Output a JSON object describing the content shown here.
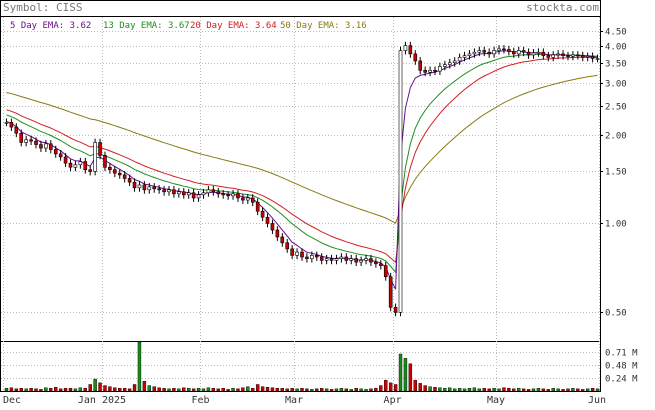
{
  "header": {
    "symbol_label": "Symbol: CISS",
    "site": "stockta.com",
    "ema5": "5 Day EMA: 3.62",
    "ema13": "13 Day EMA: 3.67",
    "ema20": "20 Day EMA: 3.64",
    "ema50": "50 Day EMA: 3.16"
  },
  "colors": {
    "up": "#1a1a1a",
    "down": "#cc0000",
    "ema5": "#6a0d91",
    "ema13": "#1f8f1f",
    "ema20": "#d21f1f",
    "ema50": "#8a7a12",
    "grid": "#bbbbbb",
    "vol_up": "#1a8a1a",
    "vol_down": "#cc0000"
  },
  "chart_data": {
    "type": "candlestick",
    "symbol": "CISS",
    "y_scale": "log",
    "ylim": [
      0.4,
      5.0
    ],
    "price_ticks": [
      0.5,
      1.0,
      1.5,
      2.0,
      2.5,
      3.0,
      3.5,
      4.0,
      4.5
    ],
    "x_labels": [
      "Dec",
      "Jan 2025",
      "Feb",
      "Mar",
      "Apr",
      "May",
      "Jun"
    ],
    "x_label_index": [
      0,
      20,
      40,
      59,
      79,
      100,
      121
    ],
    "x_grid_index": [
      0,
      20,
      40,
      59,
      79,
      100,
      121
    ],
    "trading_days": 121,
    "ohlc_start": [
      2.24,
      2.24,
      2.2,
      2.2
    ],
    "close": [
      2.2,
      2.12,
      2.02,
      1.88,
      1.92,
      1.9,
      1.85,
      1.8,
      1.86,
      1.78,
      1.72,
      1.68,
      1.6,
      1.55,
      1.58,
      1.62,
      1.52,
      1.5,
      1.88,
      1.7,
      1.55,
      1.52,
      1.48,
      1.46,
      1.42,
      1.38,
      1.32,
      1.35,
      1.3,
      1.33,
      1.31,
      1.3,
      1.28,
      1.3,
      1.26,
      1.28,
      1.25,
      1.27,
      1.22,
      1.25,
      1.27,
      1.3,
      1.28,
      1.26,
      1.25,
      1.24,
      1.26,
      1.22,
      1.2,
      1.22,
      1.18,
      1.1,
      1.05,
      1.0,
      0.95,
      0.9,
      0.86,
      0.82,
      0.78,
      0.8,
      0.77,
      0.76,
      0.78,
      0.77,
      0.75,
      0.76,
      0.75,
      0.76,
      0.77,
      0.75,
      0.76,
      0.74,
      0.75,
      0.76,
      0.74,
      0.73,
      0.72,
      0.66,
      0.52,
      0.5,
      3.85,
      4.0,
      3.75,
      3.55,
      3.3,
      3.25,
      3.3,
      3.28,
      3.4,
      3.45,
      3.5,
      3.55,
      3.65,
      3.7,
      3.75,
      3.8,
      3.85,
      3.8,
      3.75,
      3.85,
      3.9,
      3.88,
      3.82,
      3.75,
      3.85,
      3.8,
      3.72,
      3.78,
      3.8,
      3.7,
      3.65,
      3.72,
      3.75,
      3.7,
      3.68,
      3.72,
      3.7,
      3.65,
      3.68,
      3.62,
      3.62
    ],
    "volume_ticks": [
      0.24,
      0.48,
      0.71
    ],
    "volume_unit": "M",
    "volume_ylim": [
      0,
      0.9
    ],
    "volume": [
      0.05,
      0.06,
      0.04,
      0.05,
      0.04,
      0.05,
      0.04,
      0.03,
      0.06,
      0.05,
      0.07,
      0.04,
      0.05,
      0.05,
      0.04,
      0.06,
      0.05,
      0.12,
      0.22,
      0.15,
      0.1,
      0.08,
      0.06,
      0.05,
      0.05,
      0.04,
      0.12,
      0.9,
      0.18,
      0.1,
      0.08,
      0.06,
      0.05,
      0.04,
      0.05,
      0.04,
      0.06,
      0.05,
      0.04,
      0.05,
      0.04,
      0.06,
      0.05,
      0.04,
      0.05,
      0.03,
      0.05,
      0.04,
      0.06,
      0.08,
      0.05,
      0.12,
      0.08,
      0.07,
      0.06,
      0.05,
      0.05,
      0.04,
      0.05,
      0.04,
      0.05,
      0.04,
      0.03,
      0.04,
      0.05,
      0.04,
      0.03,
      0.04,
      0.05,
      0.04,
      0.03,
      0.05,
      0.04,
      0.03,
      0.04,
      0.05,
      0.1,
      0.2,
      0.15,
      0.12,
      0.68,
      0.6,
      0.5,
      0.2,
      0.14,
      0.1,
      0.08,
      0.07,
      0.06,
      0.05,
      0.06,
      0.04,
      0.05,
      0.04,
      0.05,
      0.06,
      0.04,
      0.05,
      0.04,
      0.05,
      0.04,
      0.06,
      0.05,
      0.04,
      0.05,
      0.04,
      0.03,
      0.04,
      0.05,
      0.04,
      0.03,
      0.05,
      0.04,
      0.03,
      0.04,
      0.05,
      0.04,
      0.03,
      0.04,
      0.05,
      0.04
    ]
  }
}
